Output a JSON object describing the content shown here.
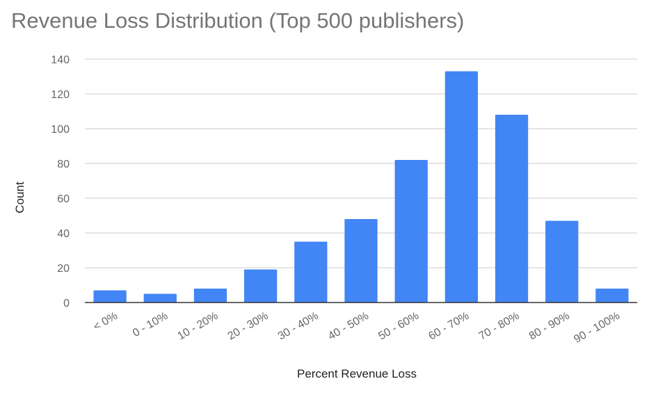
{
  "chart_data": {
    "type": "bar",
    "title": "Revenue Loss Distribution (Top 500 publishers)",
    "xlabel": "Percent Revenue Loss",
    "ylabel": "Count",
    "categories": [
      "< 0%",
      "0 - 10%",
      "10 - 20%",
      "20 - 30%",
      "30 - 40%",
      "40 - 50%",
      "50 - 60%",
      "60 - 70%",
      "70 - 80%",
      "80 - 90%",
      "90 - 100%"
    ],
    "values": [
      7,
      5,
      8,
      19,
      35,
      48,
      82,
      133,
      108,
      47,
      8
    ],
    "ylim": [
      0,
      140
    ],
    "yticks": [
      0,
      20,
      40,
      60,
      80,
      100,
      120,
      140
    ],
    "grid": true,
    "legend": "none",
    "bar_color": "#4285f4",
    "grid_color": "#cccccc",
    "axis_color": "#333333"
  }
}
